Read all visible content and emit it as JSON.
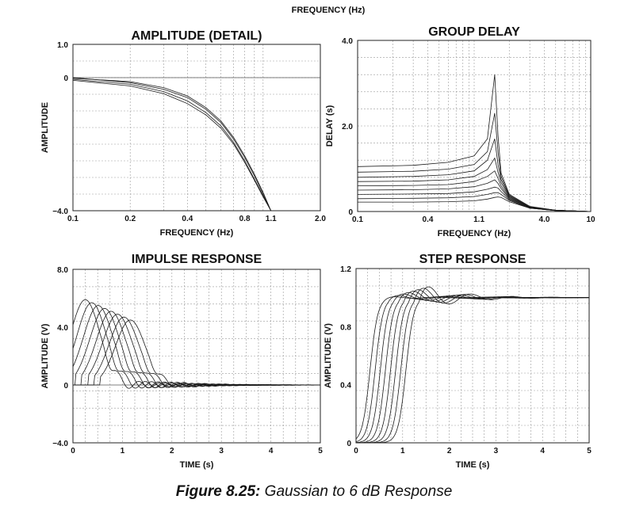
{
  "page_header": "FREQUENCY (Hz)",
  "caption": {
    "label": "Figure 8.25:",
    "text": " Gaussian to 6 dB Response"
  },
  "chart_data": [
    {
      "type": "line",
      "title": "AMPLITUDE (DETAIL)",
      "xlabel": "FREQUENCY (Hz)",
      "ylabel": "AMPLITUDE",
      "x_scale": "log",
      "xlim": [
        0.1,
        2.0
      ],
      "ylim": [
        -4.0,
        1.0
      ],
      "x_ticks": [
        "0.1",
        "0.2",
        "0.4",
        "0.8",
        "1.1",
        "2.0"
      ],
      "y_ticks": [
        "1.0",
        "0",
        "−4.0"
      ],
      "grid": true,
      "series": [
        {
          "x": [
            0.1,
            0.2,
            0.3,
            0.4,
            0.5,
            0.6,
            0.7,
            0.8,
            0.9,
            1.0,
            1.1
          ],
          "y": [
            0.0,
            -0.15,
            -0.35,
            -0.6,
            -0.95,
            -1.35,
            -1.85,
            -2.4,
            -2.95,
            -3.5,
            -4.0
          ]
        },
        {
          "x": [
            0.1,
            0.2,
            0.3,
            0.4,
            0.5,
            0.6,
            0.7,
            0.8,
            0.9,
            1.0,
            1.1
          ],
          "y": [
            -0.05,
            -0.2,
            -0.42,
            -0.7,
            -1.05,
            -1.45,
            -1.95,
            -2.5,
            -3.05,
            -3.55,
            -4.0
          ]
        },
        {
          "x": [
            0.1,
            0.2,
            0.3,
            0.4,
            0.5,
            0.6,
            0.7,
            0.8,
            0.9,
            1.0,
            1.1
          ],
          "y": [
            -0.02,
            -0.12,
            -0.3,
            -0.55,
            -0.9,
            -1.3,
            -1.8,
            -2.35,
            -2.9,
            -3.45,
            -4.0
          ]
        },
        {
          "x": [
            0.1,
            0.2,
            0.3,
            0.4,
            0.5,
            0.6,
            0.7,
            0.8,
            0.9,
            1.0,
            1.1
          ],
          "y": [
            -0.08,
            -0.25,
            -0.48,
            -0.78,
            -1.12,
            -1.52,
            -2.0,
            -2.55,
            -3.08,
            -3.58,
            -4.0
          ]
        }
      ]
    },
    {
      "type": "line",
      "title": "GROUP DELAY",
      "xlabel": "FREQUENCY (Hz)",
      "ylabel": "DELAY (s)",
      "x_scale": "log",
      "xlim": [
        0.1,
        10
      ],
      "ylim": [
        0,
        4.0
      ],
      "x_ticks": [
        "0.1",
        "0.4",
        "1.1",
        "4.0",
        "10"
      ],
      "y_ticks": [
        "4.0",
        "2.0",
        "0"
      ],
      "grid": true,
      "series": [
        {
          "x": [
            0.1,
            0.3,
            0.6,
            1.0,
            1.3,
            1.5,
            1.6,
            1.7,
            2.0,
            3.0,
            5.0,
            10
          ],
          "y": [
            1.05,
            1.08,
            1.15,
            1.3,
            1.7,
            3.2,
            1.8,
            0.9,
            0.4,
            0.12,
            0.03,
            0.0
          ]
        },
        {
          "x": [
            0.1,
            0.3,
            0.6,
            1.0,
            1.3,
            1.5,
            1.6,
            1.7,
            2.0,
            3.0,
            5.0,
            10
          ],
          "y": [
            0.92,
            0.94,
            0.99,
            1.1,
            1.4,
            2.3,
            1.4,
            0.82,
            0.38,
            0.11,
            0.03,
            0.0
          ]
        },
        {
          "x": [
            0.1,
            0.3,
            0.6,
            1.0,
            1.3,
            1.5,
            1.6,
            1.7,
            2.0,
            3.0,
            5.0,
            10
          ],
          "y": [
            0.8,
            0.82,
            0.86,
            0.95,
            1.2,
            1.7,
            1.1,
            0.75,
            0.36,
            0.1,
            0.03,
            0.0
          ]
        },
        {
          "x": [
            0.1,
            0.3,
            0.6,
            1.0,
            1.3,
            1.5,
            1.6,
            1.7,
            2.0,
            3.0,
            5.0,
            10
          ],
          "y": [
            0.7,
            0.71,
            0.74,
            0.82,
            0.98,
            1.25,
            0.92,
            0.68,
            0.34,
            0.1,
            0.03,
            0.0
          ]
        },
        {
          "x": [
            0.1,
            0.3,
            0.6,
            1.0,
            1.3,
            1.5,
            1.6,
            1.7,
            2.0,
            3.0,
            5.0,
            10
          ],
          "y": [
            0.6,
            0.61,
            0.63,
            0.7,
            0.82,
            0.95,
            0.78,
            0.6,
            0.32,
            0.09,
            0.03,
            0.0
          ]
        },
        {
          "x": [
            0.1,
            0.3,
            0.6,
            1.0,
            1.3,
            1.5,
            1.6,
            1.7,
            2.0,
            3.0,
            5.0,
            10
          ],
          "y": [
            0.5,
            0.51,
            0.53,
            0.58,
            0.66,
            0.74,
            0.66,
            0.54,
            0.3,
            0.09,
            0.03,
            0.0
          ]
        },
        {
          "x": [
            0.1,
            0.3,
            0.6,
            1.0,
            1.3,
            1.5,
            1.6,
            1.7,
            2.0,
            3.0,
            5.0,
            10
          ],
          "y": [
            0.4,
            0.41,
            0.42,
            0.46,
            0.52,
            0.57,
            0.55,
            0.47,
            0.28,
            0.08,
            0.02,
            0.0
          ]
        },
        {
          "x": [
            0.1,
            0.3,
            0.6,
            1.0,
            1.3,
            1.5,
            1.6,
            1.7,
            2.0,
            3.0,
            5.0,
            10
          ],
          "y": [
            0.3,
            0.31,
            0.32,
            0.35,
            0.4,
            0.44,
            0.44,
            0.4,
            0.26,
            0.08,
            0.02,
            0.0
          ]
        },
        {
          "x": [
            0.1,
            0.3,
            0.6,
            1.0,
            1.3,
            1.5,
            1.6,
            1.7,
            2.0,
            3.0,
            5.0,
            10
          ],
          "y": [
            0.22,
            0.22,
            0.23,
            0.25,
            0.29,
            0.33,
            0.34,
            0.33,
            0.23,
            0.08,
            0.02,
            0.0
          ]
        }
      ]
    },
    {
      "type": "line",
      "title": "IMPULSE RESPONSE",
      "xlabel": "TIME (s)",
      "ylabel": "AMPLITUDE (V)",
      "xlim": [
        0,
        5
      ],
      "ylim": [
        -4.0,
        8.0
      ],
      "x_ticks": [
        "0",
        "1",
        "2",
        "3",
        "4",
        "5"
      ],
      "y_ticks": [
        "8.0",
        "4.0",
        "0",
        "−4.0"
      ],
      "grid": true,
      "series_family": {
        "count": 8,
        "first_peak_time": 0.25,
        "peak_spacing": 0.13,
        "first_peak_amplitude": 5.9,
        "peak_step": -0.2,
        "peak_width": 0.42,
        "ripple_amplitude": 0.55,
        "ripple_period": 0.42
      },
      "series": []
    },
    {
      "type": "line",
      "title": "STEP RESPONSE",
      "xlabel": "TIME (s)",
      "ylabel": "AMPLITUDE (V)",
      "xlim": [
        0,
        5
      ],
      "ylim": [
        0,
        1.2
      ],
      "x_ticks": [
        "0",
        "1",
        "2",
        "3",
        "4",
        "5"
      ],
      "y_ticks": [
        "1.2",
        "0.8",
        "0.4",
        "0"
      ],
      "grid": true,
      "series_family": {
        "count": 8,
        "first_midpoint_time": 0.3,
        "midpoint_spacing": 0.11,
        "rise_time": 0.5,
        "overshoot_start": 0.01,
        "overshoot_step": 0.013,
        "ripple_period": 0.45
      },
      "series": []
    }
  ]
}
